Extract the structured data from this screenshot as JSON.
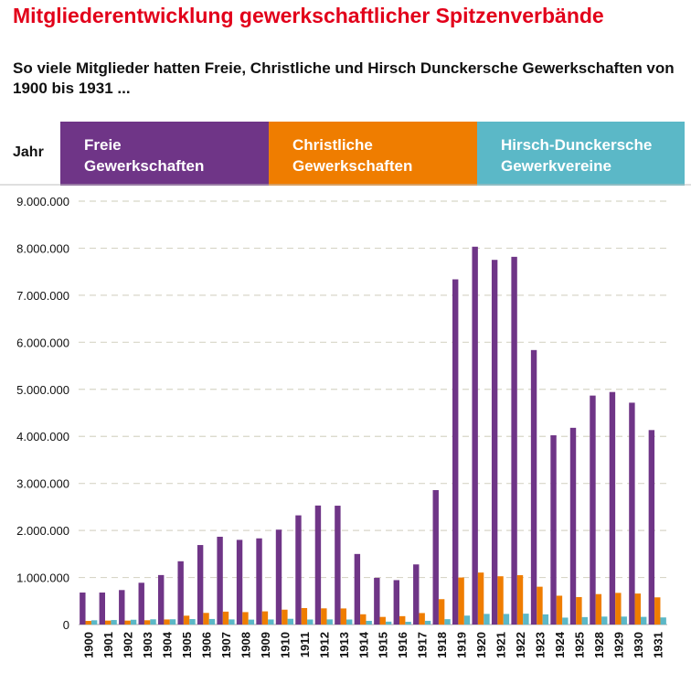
{
  "page": {
    "title": "Mitgliederentwicklung gewerkschaftlicher Spitzenverbände",
    "subtitle": "So viele Mitglieder hatten Freie, Christliche und Hirsch Dunckersche Gewerkschaften von 1900 bis 1931 ...",
    "colors": {
      "title": "#e2001a",
      "freie": "#6f3587",
      "christliche": "#ef7d00",
      "hirsch": "#5bb8c7",
      "grid": "#d8d6c8"
    }
  },
  "legend": {
    "first_column_label": "Jahr",
    "items": [
      {
        "label": "Freie\nGewerkschaften",
        "color": "#6f3587"
      },
      {
        "label": "Christliche\nGewerkschaften",
        "color": "#ef7d00"
      },
      {
        "label": "Hirsch-Dunckersche\nGewerkvereine",
        "color": "#5bb8c7"
      }
    ]
  },
  "chart_data": {
    "type": "bar",
    "categories": [
      "1900",
      "1901",
      "1902",
      "1903",
      "1904",
      "1905",
      "1906",
      "1907",
      "1908",
      "1909",
      "1910",
      "1911",
      "1912",
      "1913",
      "1914",
      "1915",
      "1916",
      "1917",
      "1918",
      "1919",
      "1920",
      "1921",
      "1922",
      "1923",
      "1924",
      "1925",
      "1928",
      "1929",
      "1930",
      "1931"
    ],
    "series": [
      {
        "name": "Freie Gewerkschaften",
        "color": "#6f3587",
        "values": [
          680000,
          680000,
          733000,
          888000,
          1052000,
          1345000,
          1690000,
          1866000,
          1800000,
          1832000,
          2017000,
          2321000,
          2530000,
          2526000,
          1500000,
          993000,
          944000,
          1278000,
          2858000,
          7338000,
          8032000,
          7752000,
          7817000,
          5835000,
          4023000,
          4182000,
          4867000,
          4943000,
          4716000,
          4134000
        ]
      },
      {
        "name": "Christliche Gewerkschaften",
        "color": "#ef7d00",
        "values": [
          77000,
          84000,
          84000,
          91000,
          108000,
          188000,
          247000,
          274000,
          264000,
          280000,
          316000,
          350000,
          344000,
          342000,
          218000,
          162000,
          178000,
          244000,
          539000,
          1000000,
          1105000,
          1026000,
          1049000,
          804000,
          613000,
          584000,
          647000,
          673000,
          659000,
          578000
        ]
      },
      {
        "name": "Hirsch-Dunckersche Gewerkvereine",
        "color": "#5bb8c7",
        "values": [
          91000,
          96000,
          102000,
          111000,
          112000,
          116000,
          118000,
          109000,
          105000,
          108000,
          122000,
          107000,
          109000,
          107000,
          78000,
          61000,
          58000,
          79000,
          114000,
          190000,
          226000,
          225000,
          231000,
          216000,
          147000,
          158000,
          169000,
          169000,
          163000,
          151000
        ]
      }
    ],
    "ylim": [
      0,
      9000000
    ],
    "yticks": [
      "0",
      "1.000.000",
      "2.000.000",
      "3.000.000",
      "4.000.000",
      "5.000.000",
      "6.000.000",
      "7.000.000",
      "8.000.000",
      "9.000.000"
    ],
    "ytick_values": [
      0,
      1000000,
      2000000,
      3000000,
      4000000,
      5000000,
      6000000,
      7000000,
      8000000,
      9000000
    ],
    "grid": "horizontal dashed",
    "legend_position": "top"
  }
}
